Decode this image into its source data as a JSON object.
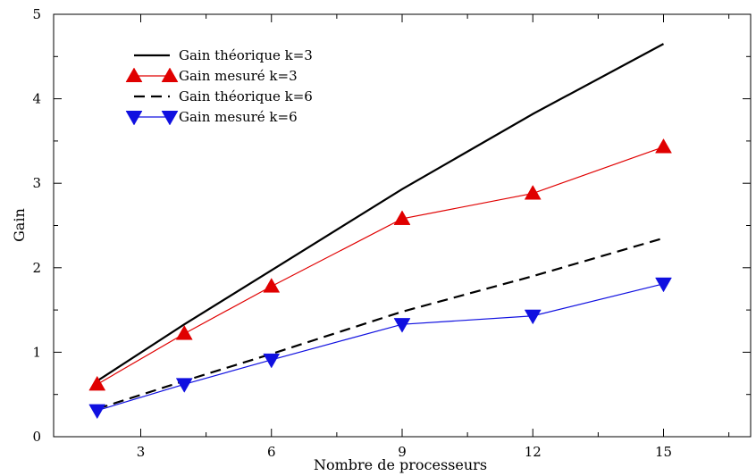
{
  "chart_data": {
    "type": "line",
    "xlabel": "Nombre de processeurs",
    "ylabel": "Gain",
    "xlim": [
      1,
      17
    ],
    "ylim": [
      0,
      5
    ],
    "xticks": [
      3,
      6,
      9,
      12,
      15
    ],
    "yticks": [
      0,
      1,
      2,
      3,
      4,
      5
    ],
    "grid": false,
    "legend_position": "top-left",
    "series": [
      {
        "name": "Gain théorique k=3",
        "style": "solid",
        "color": "#000000",
        "marker": "none",
        "x": [
          2,
          4,
          6,
          9,
          12,
          15
        ],
        "y": [
          0.66,
          1.33,
          1.97,
          2.93,
          3.82,
          4.65
        ]
      },
      {
        "name": "Gain mesuré k=3",
        "style": "solid-thin",
        "color": "#e00000",
        "marker": "triangle-up",
        "x": [
          2,
          4,
          6,
          9,
          12,
          15
        ],
        "y": [
          0.62,
          1.22,
          1.78,
          2.58,
          2.88,
          3.43
        ]
      },
      {
        "name": "Gain théorique k=6",
        "style": "dashed",
        "color": "#000000",
        "marker": "none",
        "x": [
          2,
          4,
          6,
          9,
          12,
          15
        ],
        "y": [
          0.33,
          0.66,
          0.98,
          1.48,
          1.9,
          2.35
        ]
      },
      {
        "name": "Gain mesuré k=6",
        "style": "solid-thin",
        "color": "#1010e0",
        "marker": "triangle-down",
        "x": [
          2,
          4,
          6,
          9,
          12,
          15
        ],
        "y": [
          0.31,
          0.62,
          0.91,
          1.33,
          1.43,
          1.81
        ]
      }
    ]
  }
}
